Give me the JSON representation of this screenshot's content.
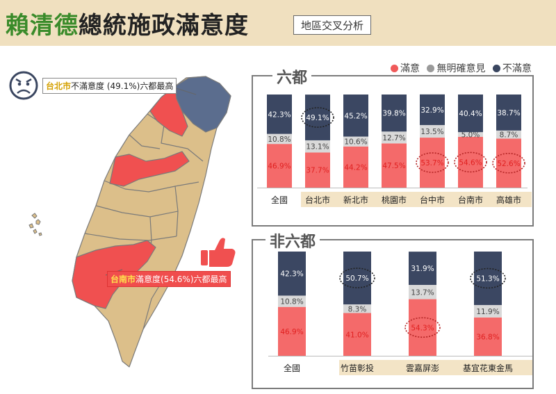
{
  "header": {
    "title_name": "賴清德",
    "title_rest": "總統施政滿意度",
    "subtitle": "地區交叉分析"
  },
  "legend": {
    "items": [
      {
        "label": "滿意",
        "color": "#f05a5a"
      },
      {
        "label": "無明確意見",
        "color": "#9a9a9a"
      },
      {
        "label": "不滿意",
        "color": "#3a4660"
      }
    ]
  },
  "map": {
    "callout_north_city": "台北市",
    "callout_north_text": "不滿意度 (49.1%)六都最高",
    "callout_south_city": "台南市",
    "callout_south_text": "滿意度(54.6%)六都最高",
    "icons": [
      "sad-face-icon",
      "thumbs-up-icon"
    ]
  },
  "colors": {
    "satisfied": "#f46a6a",
    "neutral": "#d9d9d9",
    "dissatisfied": "#3b4762",
    "label_band": "#f3e4c6"
  },
  "chart_data": [
    {
      "type": "bar",
      "stacked": true,
      "percent": true,
      "title": "六都",
      "categories": [
        "全國",
        "台北市",
        "新北市",
        "桃園市",
        "台中市",
        "台南市",
        "高雄市"
      ],
      "series": [
        {
          "name": "滿意",
          "values": [
            46.9,
            37.7,
            44.2,
            47.5,
            53.7,
            54.6,
            52.6
          ]
        },
        {
          "name": "無明確意見",
          "values": [
            10.8,
            13.1,
            10.6,
            12.7,
            13.5,
            5.0,
            8.7
          ]
        },
        {
          "name": "不滿意",
          "values": [
            42.3,
            49.1,
            45.2,
            39.8,
            32.9,
            40.4,
            38.7
          ]
        }
      ],
      "labels": {
        "滿意": [
          "46.9%",
          "37.7%",
          "44.2%",
          "47.5%",
          "53.7%",
          "54.6%",
          "52.6%"
        ],
        "無明確意見": [
          "10.8%",
          "13.1%",
          "10.6%",
          "12.7%",
          "13.5%",
          "5.0%",
          "8.7%"
        ],
        "不滿意": [
          "42.3%",
          "49.1%",
          "45.2%",
          "39.8%",
          "32.9%",
          "40.4%",
          "38.7%"
        ]
      },
      "highlighted": [
        {
          "category": "台北市",
          "series": "不滿意"
        },
        {
          "category": "台中市",
          "series": "滿意"
        },
        {
          "category": "台南市",
          "series": "滿意"
        },
        {
          "category": "高雄市",
          "series": "滿意"
        }
      ],
      "legend_position": "top-right",
      "grid": false
    },
    {
      "type": "bar",
      "stacked": true,
      "percent": true,
      "title": "非六都",
      "categories": [
        "全國",
        "竹苗彰投",
        "雲嘉屏澎",
        "基宜花東金馬"
      ],
      "series": [
        {
          "name": "滿意",
          "values": [
            46.9,
            41.0,
            54.3,
            36.8
          ]
        },
        {
          "name": "無明確意見",
          "values": [
            10.8,
            8.3,
            13.7,
            11.9
          ]
        },
        {
          "name": "不滿意",
          "values": [
            42.3,
            50.7,
            31.9,
            51.3
          ]
        }
      ],
      "labels": {
        "滿意": [
          "46.9%",
          "41.0%",
          "54.3%",
          "36.8%"
        ],
        "無明確意見": [
          "10.8%",
          "8.3%",
          "13.7%",
          "11.9%"
        ],
        "不滿意": [
          "42.3%",
          "50.7%",
          "31.9%",
          "51.3%"
        ]
      },
      "highlighted": [
        {
          "category": "竹苗彰投",
          "series": "不滿意"
        },
        {
          "category": "雲嘉屏澎",
          "series": "滿意"
        },
        {
          "category": "基宜花東金馬",
          "series": "不滿意"
        }
      ],
      "grid": false
    }
  ]
}
